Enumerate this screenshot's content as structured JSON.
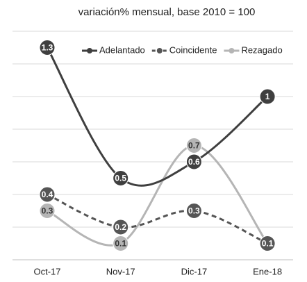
{
  "chart_data": {
    "type": "line",
    "title": "variación% mensual, base 2010 = 100",
    "categories": [
      "Oct-17",
      "Nov-17",
      "Dic-17",
      "Ene-18"
    ],
    "series": [
      {
        "name": "Adelantado",
        "color": "#3f3f3f",
        "dash": false,
        "values": [
          1.3,
          0.5,
          0.6,
          1.0
        ]
      },
      {
        "name": "Coincidente",
        "color": "#555555",
        "dash": true,
        "values": [
          0.4,
          0.2,
          0.3,
          0.1
        ]
      },
      {
        "name": "Rezagado",
        "color": "#b5b5b5",
        "dash": false,
        "values": [
          0.3,
          0.1,
          0.7,
          0.1
        ]
      }
    ],
    "ylim": [
      0,
      1.4
    ],
    "yticks": [
      0,
      0.2,
      0.4,
      0.6,
      0.8,
      1.0,
      1.2,
      1.4
    ],
    "grid": true,
    "legend": "top-right"
  }
}
